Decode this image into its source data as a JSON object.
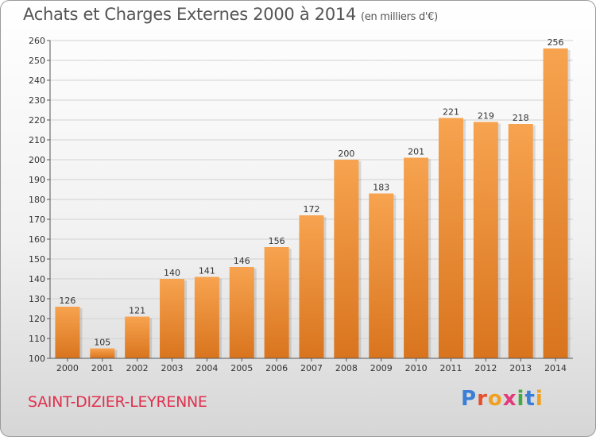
{
  "title": "Achats et Charges Externes 2000 à 2014",
  "subtitle": "(en milliers d'€)",
  "commune": "SAINT-DIZIER-LEYRENNE",
  "logo": {
    "text": "Proxiti",
    "colors": [
      "#3a7fd5",
      "#e5502c",
      "#f0a020",
      "#e23a7a",
      "#44a844",
      "#3a7fd5",
      "#f0a020"
    ]
  },
  "colors": {
    "bar_top": "#f7a34f",
    "bar_bottom": "#d9741e",
    "title": "#555555",
    "commune": "#e0304e"
  },
  "chart_data": {
    "type": "bar",
    "title": "Achats et Charges Externes 2000 à 2014",
    "categories": [
      "2000",
      "2001",
      "2002",
      "2003",
      "2004",
      "2005",
      "2006",
      "2007",
      "2008",
      "2009",
      "2010",
      "2011",
      "2012",
      "2013",
      "2014"
    ],
    "values": [
      126,
      105,
      121,
      140,
      141,
      146,
      156,
      172,
      200,
      183,
      201,
      221,
      219,
      218,
      256
    ],
    "ylim": [
      100,
      260
    ],
    "yticks": [
      100,
      110,
      120,
      130,
      140,
      150,
      160,
      170,
      180,
      190,
      200,
      210,
      220,
      230,
      240,
      250,
      260
    ],
    "grid": true,
    "xlabel": "",
    "ylabel": ""
  }
}
